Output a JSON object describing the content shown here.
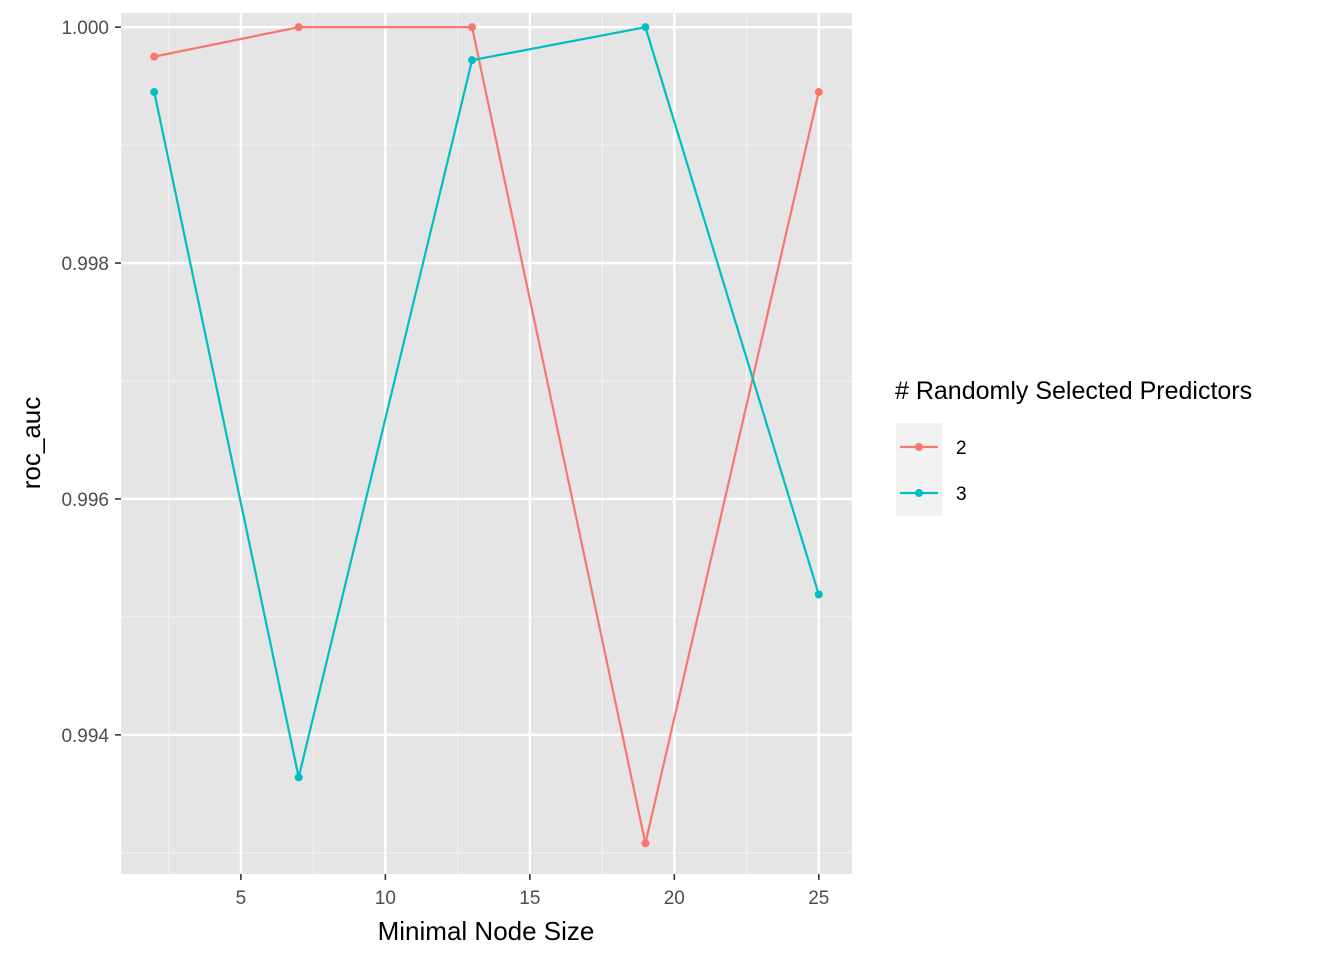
{
  "chart_data": {
    "type": "line",
    "xlabel": "Minimal Node Size",
    "ylabel": "roc_auc",
    "x": [
      2,
      7,
      13,
      19,
      25
    ],
    "xlim": [
      0.85,
      26.15
    ],
    "ylim": [
      0.99282,
      1.00012
    ],
    "x_major_ticks": [
      5,
      10,
      15,
      20,
      25
    ],
    "x_minor_ticks": [
      2.5,
      7.5,
      12.5,
      17.5,
      22.5
    ],
    "x_tick_labels": [
      "5",
      "10",
      "15",
      "20",
      "25"
    ],
    "y_major_ticks": [
      0.994,
      0.996,
      0.998,
      1.0
    ],
    "y_minor_ticks": [
      0.993,
      0.995,
      0.997,
      0.999
    ],
    "y_tick_labels": [
      "0.994",
      "0.996",
      "0.998",
      "1.000"
    ],
    "grid": true,
    "legend_placement": "right",
    "legend": {
      "title": "# Randomly Selected Predictors"
    },
    "series": [
      {
        "name": "2",
        "color": "#F8766D",
        "values": [
          0.99975,
          1.0,
          1.0,
          0.99308,
          0.99945
        ]
      },
      {
        "name": "3",
        "color": "#00BFC4",
        "values": [
          0.99945,
          0.99364,
          0.99972,
          1.0,
          0.99519
        ]
      }
    ]
  }
}
